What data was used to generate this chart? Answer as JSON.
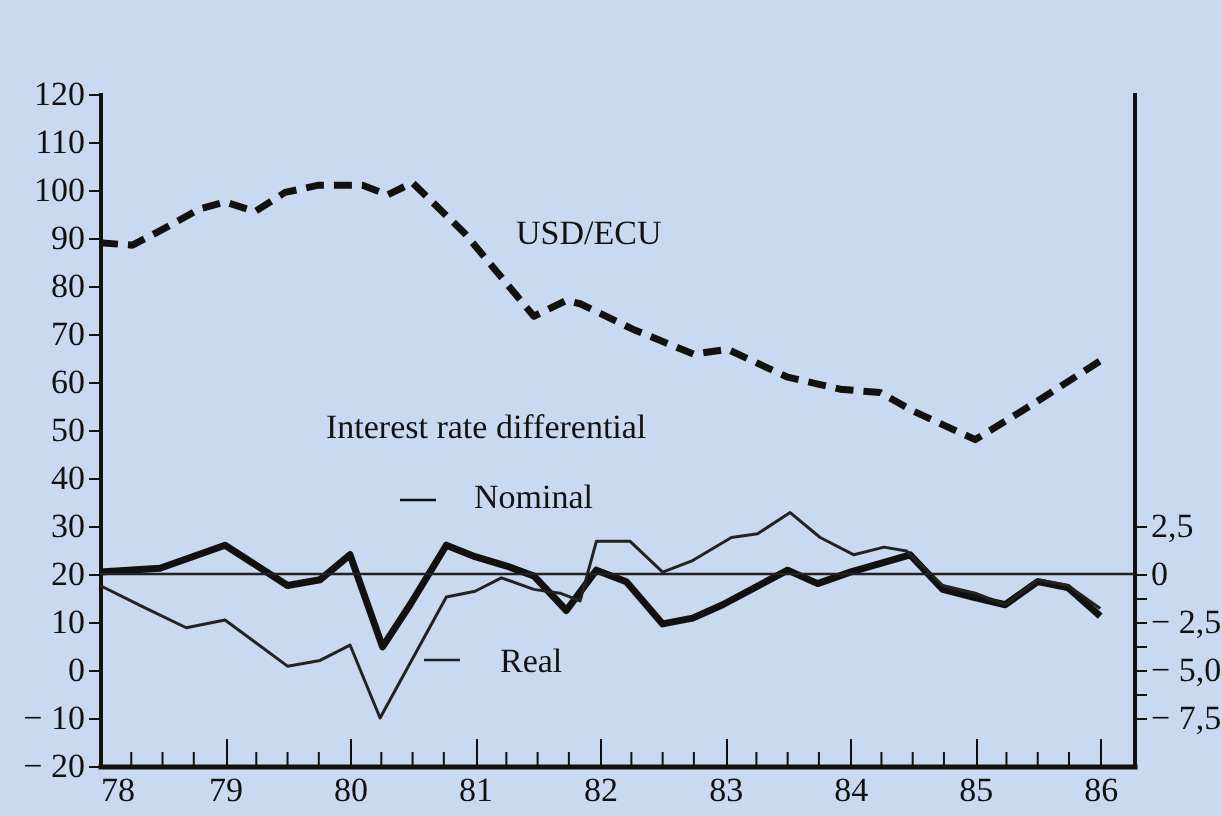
{
  "chart_data": {
    "type": "line",
    "annotations": [
      "Interest rate differential"
    ],
    "xlim": [
      78,
      86.27
    ],
    "xticks": [
      78,
      {
        "value": 78.25,
        "label": null
      },
      {
        "value": 78.5,
        "label": null
      },
      {
        "value": 78.75,
        "label": null
      },
      79,
      {
        "value": 79.25,
        "label": null
      },
      {
        "value": 79.5,
        "label": null
      },
      {
        "value": 79.75,
        "label": null
      },
      80,
      {
        "value": 80.25,
        "label": null
      },
      {
        "value": 80.5,
        "label": null
      },
      {
        "value": 80.75,
        "label": null
      },
      81,
      {
        "value": 81.25,
        "label": null
      },
      {
        "value": 81.5,
        "label": null
      },
      {
        "value": 81.75,
        "label": null
      },
      82,
      {
        "value": 82.25,
        "label": null
      },
      {
        "value": 82.5,
        "label": null
      },
      {
        "value": 82.75,
        "label": null
      },
      83,
      {
        "value": 83.25,
        "label": null
      },
      {
        "value": 83.5,
        "label": null
      },
      {
        "value": 83.75,
        "label": null
      },
      84,
      {
        "value": 84.25,
        "label": null
      },
      {
        "value": 84.5,
        "label": null
      },
      {
        "value": 84.75,
        "label": null
      },
      85,
      {
        "value": 85.25,
        "label": null
      },
      {
        "value": 85.5,
        "label": null
      },
      {
        "value": 85.75,
        "label": null
      },
      86
    ],
    "ylim": [
      -20,
      120
    ],
    "yticks": [
      {
        "value": -20,
        "label": "− 20"
      },
      {
        "value": -10,
        "label": "− 10"
      },
      0,
      10,
      20,
      30,
      40,
      50,
      60,
      70,
      80,
      90,
      100,
      110,
      120
    ],
    "y2lim": [
      -10,
      25
    ],
    "y2ticks": [
      {
        "value": -7.5,
        "label": "− 7,5"
      },
      {
        "value": -6.25,
        "label": null
      },
      {
        "value": -5,
        "label": "− 5,0"
      },
      {
        "value": -3.75,
        "label": null
      },
      {
        "value": -2.5,
        "label": "− 2,5"
      },
      {
        "value": -1.25,
        "label": null
      },
      {
        "value": 0,
        "label": "0"
      },
      {
        "value": 2.5,
        "label": "2,5"
      }
    ],
    "ref_lines": [
      {
        "axis": "y2",
        "value": 0,
        "label": null,
        "color": "#222222"
      }
    ],
    "grid": false,
    "legend": "left",
    "marker": "none",
    "series": [
      {
        "name": "USD/ECU",
        "color": "#111111",
        "line_style": "dashed",
        "x": [
          78,
          78.26,
          78.53,
          78.8,
          79,
          79.24,
          79.48,
          79.75,
          80.1,
          80.3,
          80.5,
          80.92,
          81.47,
          81.73,
          81.84,
          82,
          82.26,
          82.75,
          83.02,
          83.5,
          83.92,
          84.24,
          84.5,
          85,
          85.45,
          86
        ],
        "values": [
          89,
          88.5,
          92.2,
          96.1,
          97.5,
          95.5,
          99.5,
          101,
          101,
          99,
          101.5,
          90.9,
          73.7,
          77,
          76.3,
          74.3,
          71,
          65.8,
          66.8,
          61,
          58.5,
          57.8,
          54,
          48,
          55.2,
          64.4
        ]
      },
      {
        "name": "Nominal",
        "color": "#111111",
        "line_style": "solid",
        "axis": "y2",
        "x": [
          78,
          78.48,
          79,
          79.5,
          79.76,
          80,
          80.26,
          80.48,
          80.77,
          81,
          81.26,
          81.47,
          81.73,
          81.97,
          82.21,
          82.5,
          82.74,
          82.98,
          83.5,
          83.74,
          84,
          84.48,
          84.74,
          84.98,
          85.24,
          85.5,
          85.74,
          86
        ],
        "values": [
          0.1,
          0.3,
          1.5,
          -0.6,
          -0.3,
          1,
          -3.8,
          -1.6,
          1.5,
          0.9,
          0.4,
          -0.1,
          -1.9,
          0.2,
          -0.4,
          -2.6,
          -2.3,
          -1.6,
          0.2,
          -0.5,
          0.1,
          1,
          -0.8,
          -1.2,
          -1.6,
          -0.4,
          -0.7,
          -2.2
        ]
      },
      {
        "name": "Real",
        "color": "#222222",
        "line_style": "solid",
        "axis": "y2",
        "x": [
          78,
          78.34,
          78.69,
          79,
          79.5,
          79.76,
          80,
          80.24,
          80.77,
          81,
          81.21,
          81.47,
          81.68,
          81.84,
          81.97,
          82.24,
          82.5,
          82.74,
          83.05,
          83.26,
          83.52,
          83.76,
          84.03,
          84.27,
          84.45,
          84.74,
          85,
          85.24,
          85.5,
          85.74,
          86
        ],
        "values": [
          -0.6,
          -1.7,
          -2.8,
          -2.4,
          -4.8,
          -4.5,
          -3.7,
          -7.5,
          -1.2,
          -0.9,
          -0.2,
          -0.8,
          -1,
          -1.4,
          1.7,
          1.7,
          0.1,
          0.7,
          1.9,
          2.1,
          3.2,
          1.9,
          1,
          1.4,
          1.2,
          -0.6,
          -1,
          -1.6,
          -0.3,
          -0.6,
          -1.8
        ]
      }
    ]
  }
}
